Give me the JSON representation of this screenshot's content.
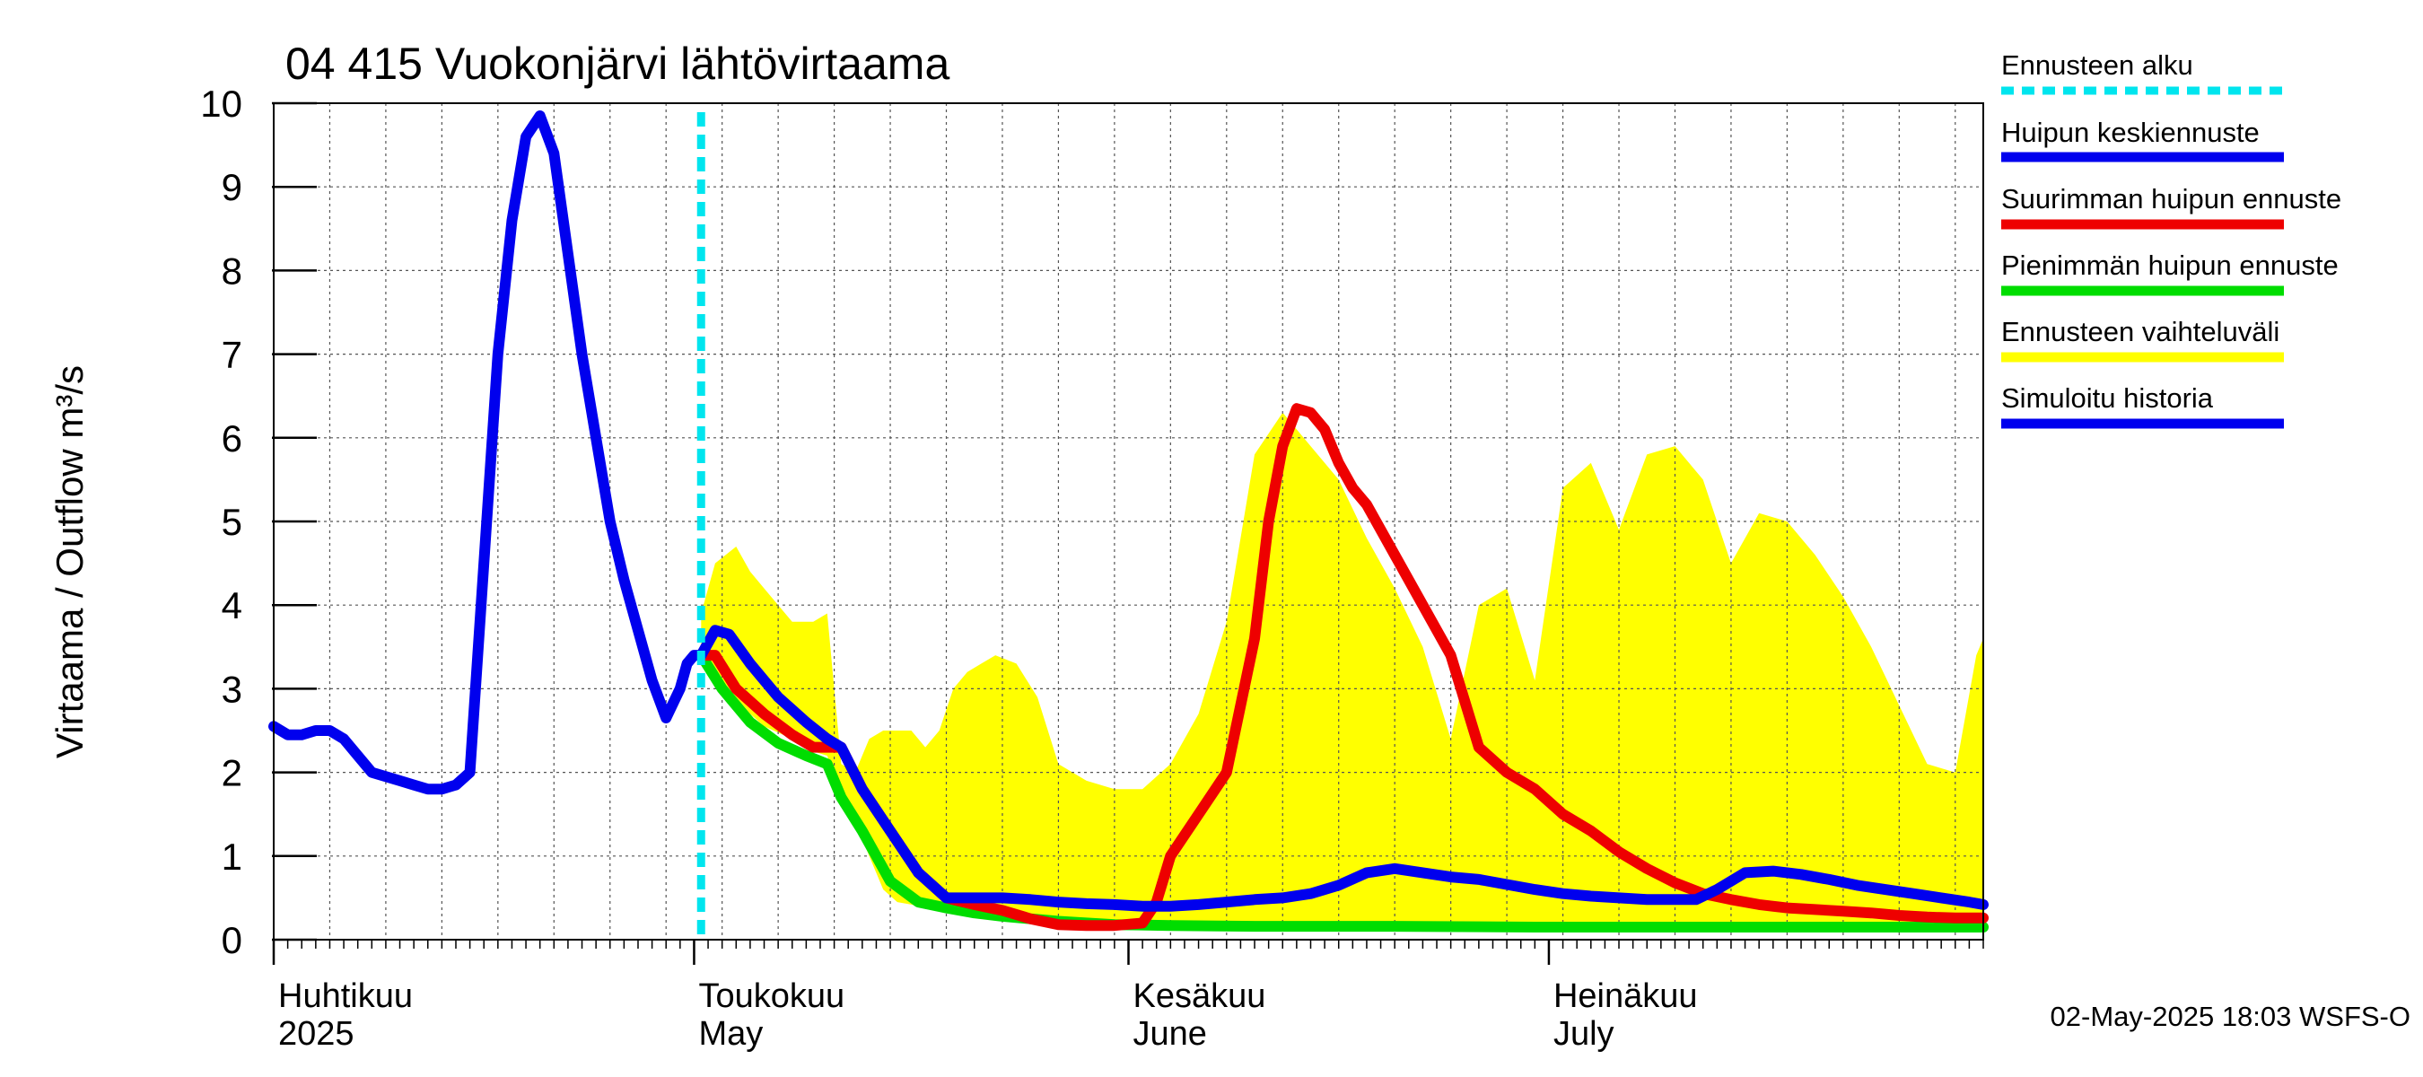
{
  "chart_data": {
    "type": "area",
    "title": "04 415 Vuokonjärvi lähtövirtaama",
    "ylabel": "Virtaama / Outflow    m³/s",
    "xlabel": "",
    "ylim": [
      0,
      10
    ],
    "yticks": [
      0,
      1,
      2,
      3,
      4,
      5,
      6,
      7,
      8,
      9,
      10
    ],
    "ytick_labels": [
      "0",
      "1",
      "2",
      "3",
      "4",
      "5",
      "6",
      "7",
      "8",
      "9",
      "10"
    ],
    "xlim_days": [
      0,
      122
    ],
    "month_labels": [
      {
        "day": 0,
        "line1": "Huhtikuu",
        "line2": "2025"
      },
      {
        "day": 30,
        "line1": "Toukokuu",
        "line2": "May"
      },
      {
        "day": 61,
        "line1": "Kesäkuu",
        "line2": "June"
      },
      {
        "day": 91,
        "line1": "Heinäkuu",
        "line2": "July"
      }
    ],
    "forecast_start_day": 30.5,
    "legend": [
      {
        "label": "Ennusteen alku",
        "color": "#00e5ee",
        "style": "dashed"
      },
      {
        "label": "Huipun keskiennuste",
        "color": "#0000ee",
        "style": "solid"
      },
      {
        "label": "Suurimman huipun ennuste",
        "color": "#ee0000",
        "style": "solid"
      },
      {
        "label": "Pienimmän huipun ennuste",
        "color": "#00dd00",
        "style": "solid"
      },
      {
        "label": "Ennusteen vaihteluväli",
        "color": "#ffff00",
        "style": "solid"
      },
      {
        "label": "Simuloitu historia",
        "color": "#0000ee",
        "style": "solid"
      }
    ],
    "series": [
      {
        "name": "Ennusteen vaihteluväli",
        "color": "#ffff00",
        "kind": "band",
        "x": [
          30.5,
          31.5,
          33,
          34,
          35,
          37,
          38.5,
          39.5,
          40.5,
          41.5,
          42.5,
          43.5,
          44.5,
          45.5,
          46.5,
          47.5,
          48.5,
          49.5,
          50.5,
          51.5,
          53,
          54.5,
          56,
          58,
          60,
          62,
          64,
          66,
          68,
          70,
          72,
          74,
          76,
          78,
          80,
          82,
          84,
          86,
          88,
          90,
          92,
          94,
          96,
          98,
          100,
          102,
          104,
          106,
          108,
          110,
          112,
          114,
          116,
          118,
          120,
          121.5,
          122
        ],
        "upper": [
          3.9,
          4.5,
          4.7,
          4.4,
          4.2,
          3.8,
          3.8,
          3.9,
          2.1,
          2.0,
          2.4,
          2.5,
          2.5,
          2.5,
          2.3,
          2.5,
          3.0,
          3.2,
          3.3,
          3.4,
          3.3,
          2.9,
          2.1,
          1.9,
          1.8,
          1.8,
          2.1,
          2.7,
          3.8,
          5.8,
          6.3,
          5.9,
          5.5,
          4.8,
          4.2,
          3.5,
          2.4,
          4.0,
          4.2,
          3.1,
          5.4,
          5.7,
          4.9,
          5.8,
          5.9,
          5.5,
          4.5,
          5.1,
          5.0,
          4.6,
          4.1,
          3.5,
          2.8,
          2.1,
          2.0,
          3.4,
          3.6
        ],
        "lower": [
          3.4,
          3.2,
          2.9,
          2.7,
          2.55,
          2.4,
          2.25,
          2.2,
          1.7,
          1.4,
          1.0,
          0.6,
          0.45,
          0.42,
          0.38,
          0.35,
          0.32,
          0.28,
          0.26,
          0.24,
          0.22,
          0.2,
          0.19,
          0.18,
          0.17,
          0.17,
          0.17,
          0.16,
          0.16,
          0.16,
          0.16,
          0.16,
          0.16,
          0.16,
          0.16,
          0.16,
          0.16,
          0.16,
          0.16,
          0.16,
          0.15,
          0.15,
          0.15,
          0.15,
          0.15,
          0.15,
          0.15,
          0.15,
          0.15,
          0.15,
          0.15,
          0.15,
          0.15,
          0.15,
          0.15,
          0.15,
          0.15
        ]
      },
      {
        "name": "Pienimmän huipun ennuste",
        "color": "#00dd00",
        "x": [
          30.5,
          32,
          34,
          36,
          38,
          39.5,
          40.5,
          42,
          44,
          46,
          48,
          50,
          52,
          56,
          60,
          64,
          70,
          80,
          90,
          100,
          110,
          122
        ],
        "values": [
          3.4,
          3.0,
          2.6,
          2.35,
          2.2,
          2.1,
          1.7,
          1.3,
          0.7,
          0.45,
          0.38,
          0.32,
          0.28,
          0.22,
          0.18,
          0.17,
          0.16,
          0.16,
          0.15,
          0.15,
          0.15,
          0.15
        ]
      },
      {
        "name": "Suurimman huipun ennuste",
        "color": "#ee0000",
        "x": [
          30.5,
          31.5,
          33,
          35,
          37,
          38.5,
          39.5,
          40.5,
          42,
          44,
          46,
          48,
          50,
          52,
          53,
          54,
          56,
          58,
          60,
          62,
          63,
          64,
          66,
          68,
          70,
          71,
          72,
          73,
          74,
          75,
          76,
          77,
          78,
          80,
          82,
          84,
          86,
          88,
          90,
          92,
          94,
          96,
          98,
          100,
          102,
          104,
          106,
          108,
          110,
          112,
          114,
          116,
          118,
          120,
          122
        ],
        "values": [
          3.4,
          3.4,
          3.0,
          2.7,
          2.45,
          2.3,
          2.3,
          2.3,
          1.8,
          1.3,
          0.8,
          0.5,
          0.42,
          0.35,
          0.3,
          0.25,
          0.18,
          0.17,
          0.17,
          0.2,
          0.45,
          1.0,
          1.5,
          2.0,
          3.6,
          5.0,
          5.9,
          6.35,
          6.3,
          6.1,
          5.7,
          5.4,
          5.2,
          4.6,
          4.0,
          3.4,
          2.3,
          2.0,
          1.8,
          1.5,
          1.3,
          1.05,
          0.85,
          0.68,
          0.55,
          0.48,
          0.42,
          0.38,
          0.36,
          0.34,
          0.32,
          0.29,
          0.27,
          0.26,
          0.26
        ]
      },
      {
        "name": "Huipun keskiennuste",
        "color": "#0000ee",
        "x": [
          30.5,
          31.5,
          32.5,
          34,
          36,
          38,
          39.5,
          40.5,
          42,
          44,
          46,
          48,
          50,
          52,
          54,
          56,
          58,
          60,
          62,
          64,
          66,
          68,
          70,
          72,
          74,
          76,
          78,
          80,
          82,
          84,
          86,
          88,
          90,
          92,
          94,
          96,
          98,
          100,
          101.5,
          103,
          105,
          107,
          109,
          111,
          113,
          115,
          117,
          119,
          121,
          122
        ],
        "values": [
          3.4,
          3.7,
          3.65,
          3.3,
          2.9,
          2.6,
          2.4,
          2.3,
          1.8,
          1.3,
          0.8,
          0.5,
          0.5,
          0.5,
          0.48,
          0.45,
          0.43,
          0.42,
          0.4,
          0.4,
          0.42,
          0.45,
          0.48,
          0.5,
          0.55,
          0.65,
          0.8,
          0.85,
          0.8,
          0.75,
          0.72,
          0.66,
          0.6,
          0.55,
          0.52,
          0.5,
          0.48,
          0.48,
          0.48,
          0.6,
          0.8,
          0.82,
          0.78,
          0.72,
          0.65,
          0.6,
          0.55,
          0.5,
          0.45,
          0.42
        ]
      },
      {
        "name": "Simuloitu historia",
        "color": "#0000ee",
        "x": [
          0,
          1,
          2,
          3,
          4,
          5,
          6,
          7,
          8,
          9,
          10,
          11,
          12,
          13,
          14,
          15,
          16,
          17,
          18,
          19,
          20,
          21,
          22,
          23,
          24,
          25,
          26,
          27,
          28,
          29,
          29.5,
          30,
          30.5
        ],
        "values": [
          2.55,
          2.45,
          2.45,
          2.5,
          2.5,
          2.4,
          2.2,
          2.0,
          1.95,
          1.9,
          1.85,
          1.8,
          1.8,
          1.85,
          2.0,
          4.5,
          7.0,
          8.6,
          9.6,
          9.85,
          9.4,
          8.2,
          7.0,
          6.0,
          5.0,
          4.3,
          3.7,
          3.1,
          2.65,
          3.0,
          3.3,
          3.4,
          3.4
        ]
      }
    ]
  },
  "footer": {
    "timestamp": "02-May-2025 18:03 WSFS-O"
  }
}
